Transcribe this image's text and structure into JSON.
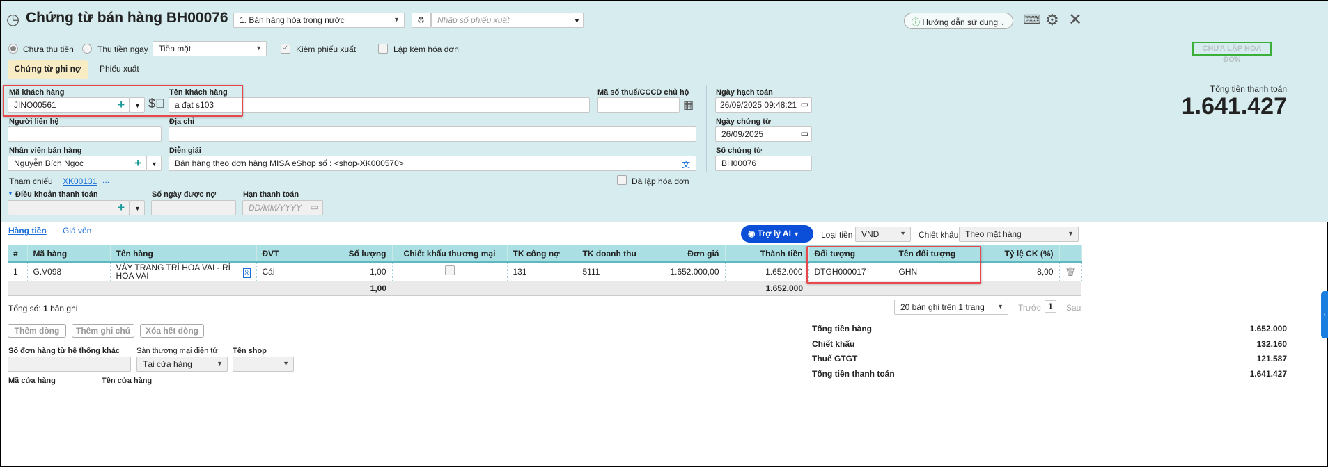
{
  "header": {
    "title": "Chứng từ bán hàng BH00076",
    "voucher_type": "1. Bán hàng hóa trong nước",
    "export_no_placeholder": "Nhập số phiếu xuất",
    "help_label": "Hướng dẫn sử dụng"
  },
  "options": {
    "unpaid": "Chưa thu tiền",
    "paid_now": "Thu tiền ngay",
    "payment_method": "Tiền mặt",
    "with_export": "Kiêm phiếu xuất",
    "with_invoice": "Lập kèm hóa đơn",
    "invoice_status": "CHƯA LẬP HÓA ĐƠN"
  },
  "tabs": [
    "Chứng từ ghi nợ",
    "Phiếu xuất"
  ],
  "form": {
    "customer_code_label": "Mã khách hàng",
    "customer_code": "JINO00561",
    "customer_name_label": "Tên khách hàng",
    "customer_name": "a đạt s103",
    "tax_label": "Mã số thuế/CCCD chủ hộ",
    "tax": "",
    "contact_label": "Người liên hệ",
    "address_label": "Địa chỉ",
    "salesperson_label": "Nhân viên bán hàng",
    "salesperson": "Nguyễn Bích Ngọc",
    "description_label": "Diễn giải",
    "description": "Bán hàng theo đơn hàng MISA eShop số : <shop-XK000570>",
    "reference_label": "Tham chiếu",
    "reference": "XK00131",
    "reference_more": "...",
    "invoiced_label": "Đã lập hóa đơn",
    "payment_terms_label": "Điều khoản thanh toán",
    "credit_days_label": "Số ngày được nợ",
    "due_date_label": "Hạn thanh toán",
    "due_date_placeholder": "DD/MM/YYYY",
    "posting_date_label": "Ngày hạch toán",
    "posting_date": "26/09/2025 09:48:21",
    "voucher_date_label": "Ngày chứng từ",
    "voucher_date": "26/09/2025",
    "voucher_no_label": "Số chứng từ",
    "voucher_no": "BH00076"
  },
  "total": {
    "label": "Tổng tiền thanh toán",
    "value": "1.641.427"
  },
  "detail": {
    "tabs": [
      "Hàng tiền",
      "Giá vốn"
    ],
    "ai_label": "Trợ lý AI",
    "currency_label": "Loại tiền",
    "currency": "VND",
    "discount_label": "Chiết khấu",
    "discount_mode": "Theo mặt hàng",
    "columns": [
      "#",
      "Mã hàng",
      "Tên hàng",
      "ĐVT",
      "Số lượng",
      "Chiết khấu thương mại",
      "TK công nợ",
      "TK doanh thu",
      "Đơn giá",
      "Thành tiền",
      "Đối tượng",
      "Tên đối tượng",
      "Tỷ lệ CK (%)"
    ],
    "rows": [
      {
        "no": "1",
        "code": "G.V098",
        "name": "VÁY TRANG TRÍ HOA VAI - RÍ HOA VAI",
        "unit": "Cái",
        "qty": "1,00",
        "acc_debt": "131",
        "acc_rev": "5111",
        "price": "1.652.000,00",
        "amount": "1.652.000",
        "object": "DTGH000017",
        "object_name": "GHN",
        "discount_rate": "8,00"
      }
    ],
    "totals": {
      "qty": "1,00",
      "amount": "1.652.000"
    },
    "record_count_prefix": "Tổng số:",
    "record_count": "1",
    "record_count_suffix": "bản ghi",
    "page_size": "20 bản ghi trên 1 trang",
    "prev": "Trước",
    "page": "1",
    "next": "Sau",
    "buttons": [
      "Thêm dòng",
      "Thêm ghi chú",
      "Xóa hết dòng"
    ]
  },
  "extra": {
    "order_no_label": "Số đơn hàng từ hệ thống khác",
    "ecommerce_label": "Sàn thương mại điện tử",
    "ecommerce": "Tại cửa hàng",
    "shop_label": "Tên shop",
    "store_code_label": "Mã cửa hàng",
    "store_name_label": "Tên cửa hàng"
  },
  "summary": [
    {
      "label": "Tổng tiền hàng",
      "value": "1.652.000"
    },
    {
      "label": "Chiết khấu",
      "value": "132.160"
    },
    {
      "label": "Thuế GTGT",
      "value": "121.587"
    },
    {
      "label": "Tổng tiền thanh toán",
      "value": "1.641.427"
    }
  ],
  "colors": {
    "panel": "#d7ecee",
    "accent": "#1a9a9a",
    "highlight": "#e8474b",
    "ai": "#0b4fd8",
    "invoice_status": "#3ab03a"
  }
}
